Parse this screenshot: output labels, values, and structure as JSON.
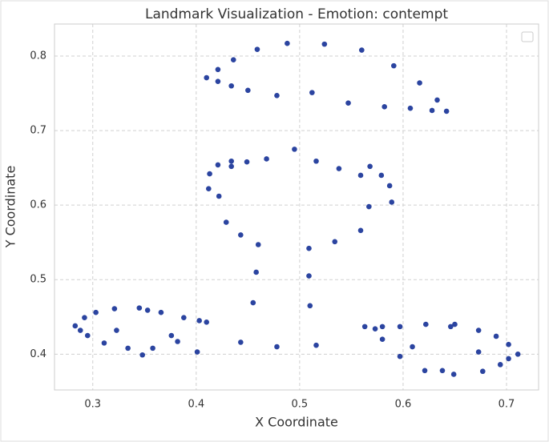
{
  "chart_data": {
    "type": "scatter",
    "title": "Landmark Visualization - Emotion: contempt",
    "x_label": "X Coordinate",
    "y_label": "Y Coordinate",
    "xlim": [
      0.263,
      0.731
    ],
    "ylim": [
      0.352,
      0.843
    ],
    "xticks": [
      0.3,
      0.4,
      0.5,
      0.6,
      0.7
    ],
    "yticks": [
      0.4,
      0.5,
      0.6,
      0.7,
      0.8
    ],
    "grid": true,
    "color": "#2b44a0",
    "x": [
      0.41,
      0.421,
      0.421,
      0.436,
      0.434,
      0.45,
      0.459,
      0.478,
      0.488,
      0.512,
      0.524,
      0.547,
      0.56,
      0.582,
      0.591,
      0.607,
      0.616,
      0.628,
      0.633,
      0.642,
      0.412,
      0.413,
      0.421,
      0.422,
      0.434,
      0.434,
      0.429,
      0.449,
      0.443,
      0.46,
      0.468,
      0.458,
      0.495,
      0.455,
      0.516,
      0.509,
      0.509,
      0.51,
      0.538,
      0.534,
      0.559,
      0.559,
      0.568,
      0.567,
      0.579,
      0.587,
      0.589,
      0.283,
      0.288,
      0.292,
      0.295,
      0.303,
      0.311,
      0.321,
      0.323,
      0.334,
      0.345,
      0.348,
      0.353,
      0.358,
      0.366,
      0.376,
      0.382,
      0.388,
      0.401,
      0.403,
      0.41,
      0.443,
      0.478,
      0.516,
      0.563,
      0.573,
      0.58,
      0.58,
      0.597,
      0.597,
      0.609,
      0.621,
      0.622,
      0.638,
      0.646,
      0.649,
      0.65,
      0.673,
      0.673,
      0.677,
      0.69,
      0.694,
      0.702,
      0.702,
      0.711
    ],
    "values": [
      0.771,
      0.782,
      0.766,
      0.795,
      0.76,
      0.754,
      0.809,
      0.747,
      0.817,
      0.751,
      0.816,
      0.737,
      0.808,
      0.732,
      0.787,
      0.73,
      0.764,
      0.727,
      0.741,
      0.726,
      0.622,
      0.642,
      0.654,
      0.612,
      0.659,
      0.652,
      0.577,
      0.658,
      0.56,
      0.547,
      0.662,
      0.51,
      0.675,
      0.469,
      0.659,
      0.542,
      0.505,
      0.465,
      0.649,
      0.551,
      0.64,
      0.566,
      0.652,
      0.598,
      0.64,
      0.626,
      0.604,
      0.438,
      0.432,
      0.449,
      0.425,
      0.456,
      0.415,
      0.461,
      0.432,
      0.408,
      0.462,
      0.399,
      0.459,
      0.408,
      0.456,
      0.425,
      0.417,
      0.449,
      0.403,
      0.445,
      0.443,
      0.416,
      0.41,
      0.412,
      0.437,
      0.434,
      0.437,
      0.42,
      0.437,
      0.397,
      0.41,
      0.378,
      0.44,
      0.378,
      0.437,
      0.373,
      0.44,
      0.432,
      0.403,
      0.377,
      0.424,
      0.386,
      0.413,
      0.394,
      0.4
    ]
  }
}
